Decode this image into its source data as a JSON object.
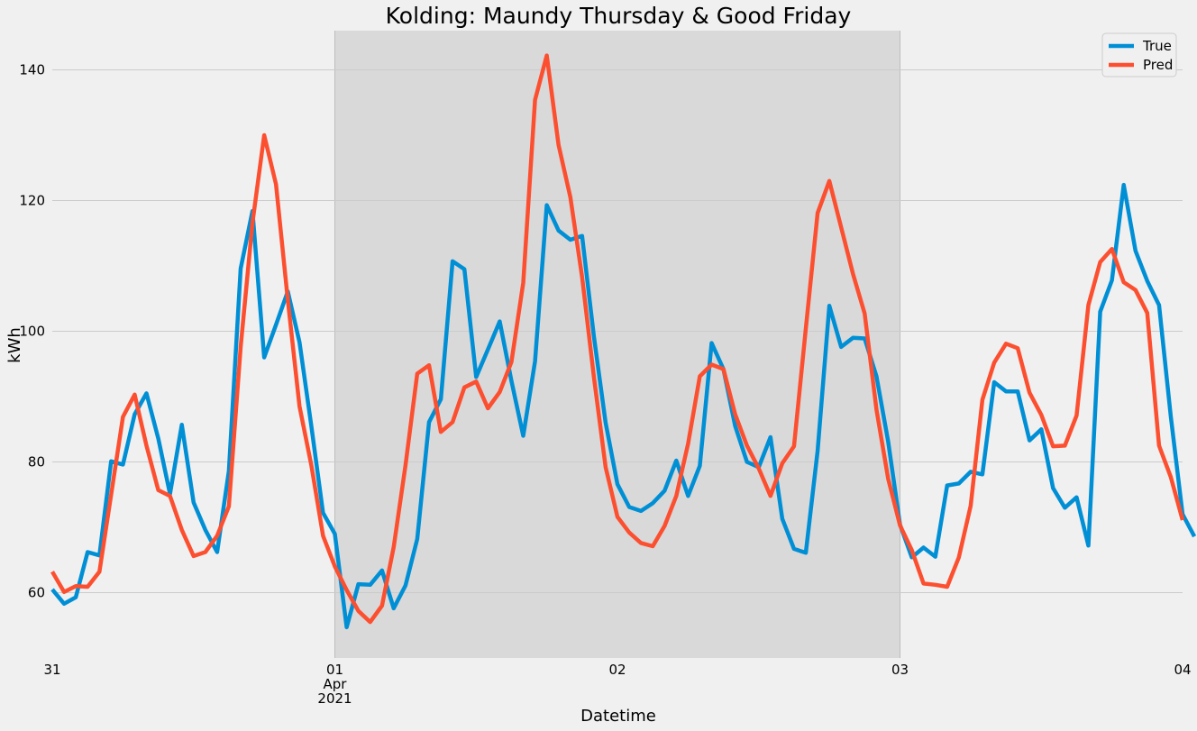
{
  "chart_data": {
    "type": "line",
    "title": "Kolding: Maundy Thursday & Good Friday",
    "xlabel": "Datetime",
    "ylabel": "kWh",
    "xlim": [
      "2021-03-31 00:00",
      "2021-04-04 00:00"
    ],
    "ylim": [
      50,
      146
    ],
    "grid": true,
    "legend": "top-right",
    "y_ticks": [
      60,
      80,
      100,
      120,
      140
    ],
    "x_ticks": [
      {
        "at": "2021-03-31 00:00",
        "lines": [
          "31"
        ]
      },
      {
        "at": "2021-04-01 00:00",
        "lines": [
          "01",
          "Apr",
          "2021"
        ]
      },
      {
        "at": "2021-04-02 00:00",
        "lines": [
          "02"
        ]
      },
      {
        "at": "2021-04-03 00:00",
        "lines": [
          "03"
        ]
      },
      {
        "at": "2021-04-04 00:00",
        "lines": [
          "04"
        ]
      }
    ],
    "highlight": {
      "start": "2021-04-01 00:00",
      "end": "2021-04-03 00:00",
      "color": "#d9d9d9"
    },
    "x_step_hours": 1,
    "series": [
      {
        "name": "True",
        "color": "#008fd5",
        "start": "2021-03-31 00:00",
        "values": [
          60.5,
          58.3,
          59.3,
          66.2,
          65.7,
          80.1,
          79.6,
          87.3,
          90.5,
          83.6,
          75.1,
          85.7,
          73.8,
          69.6,
          66.2,
          78.6,
          109.6,
          118.4,
          96.0,
          101.0,
          106.1,
          98.3,
          85.5,
          72.2,
          69.0,
          54.7,
          61.3,
          61.2,
          63.4,
          57.6,
          61.1,
          68.2,
          86.1,
          89.6,
          110.7,
          109.5,
          93.0,
          97.2,
          101.5,
          92.4,
          84.0,
          95.4,
          119.3,
          115.4,
          114.0,
          114.6,
          99.2,
          86.0,
          76.6,
          73.1,
          72.5,
          73.7,
          75.6,
          80.2,
          74.8,
          79.4,
          98.2,
          94.2,
          85.5,
          80.0,
          79.2,
          83.8,
          71.3,
          66.7,
          66.1,
          81.7,
          103.9,
          97.6,
          99.0,
          98.9,
          93.1,
          83.1,
          70.4,
          65.4,
          66.9,
          65.5,
          76.4,
          76.7,
          78.5,
          78.1,
          92.2,
          90.8,
          90.8,
          83.3,
          85.0,
          76.0,
          73.0,
          74.6,
          67.2,
          103.0,
          107.8,
          122.4,
          112.3,
          107.7,
          104.0,
          87.0,
          72.0,
          68.6
        ]
      },
      {
        "name": "Pred",
        "color": "#fc4f30",
        "start": "2021-03-31 00:00",
        "values": [
          63.2,
          60.1,
          61.0,
          60.9,
          63.2,
          75.0,
          86.9,
          90.3,
          82.5,
          75.7,
          74.8,
          69.6,
          65.6,
          66.2,
          68.7,
          73.2,
          97.6,
          116.6,
          130.0,
          122.5,
          104.8,
          88.5,
          79.5,
          68.7,
          64.0,
          60.4,
          57.2,
          55.5,
          58.0,
          67.0,
          79.5,
          93.5,
          94.8,
          84.6,
          86.1,
          91.4,
          92.3,
          88.2,
          90.7,
          95.3,
          107.4,
          135.4,
          142.2,
          128.5,
          120.5,
          108.3,
          93.0,
          79.2,
          71.6,
          69.2,
          67.6,
          67.1,
          70.2,
          74.8,
          82.8,
          93.1,
          94.9,
          94.2,
          87.3,
          82.5,
          79.0,
          74.8,
          79.8,
          82.4,
          100.4,
          118.1,
          123.0,
          115.9,
          108.8,
          102.7,
          88.0,
          77.4,
          70.3,
          66.5,
          61.4,
          61.2,
          60.9,
          65.4,
          73.3,
          89.5,
          95.2,
          98.1,
          97.4,
          90.6,
          87.2,
          82.4,
          82.5,
          87.1,
          104.0,
          110.6,
          112.6,
          107.5,
          106.3,
          102.8,
          82.5,
          77.7,
          71.1
        ]
      }
    ]
  }
}
